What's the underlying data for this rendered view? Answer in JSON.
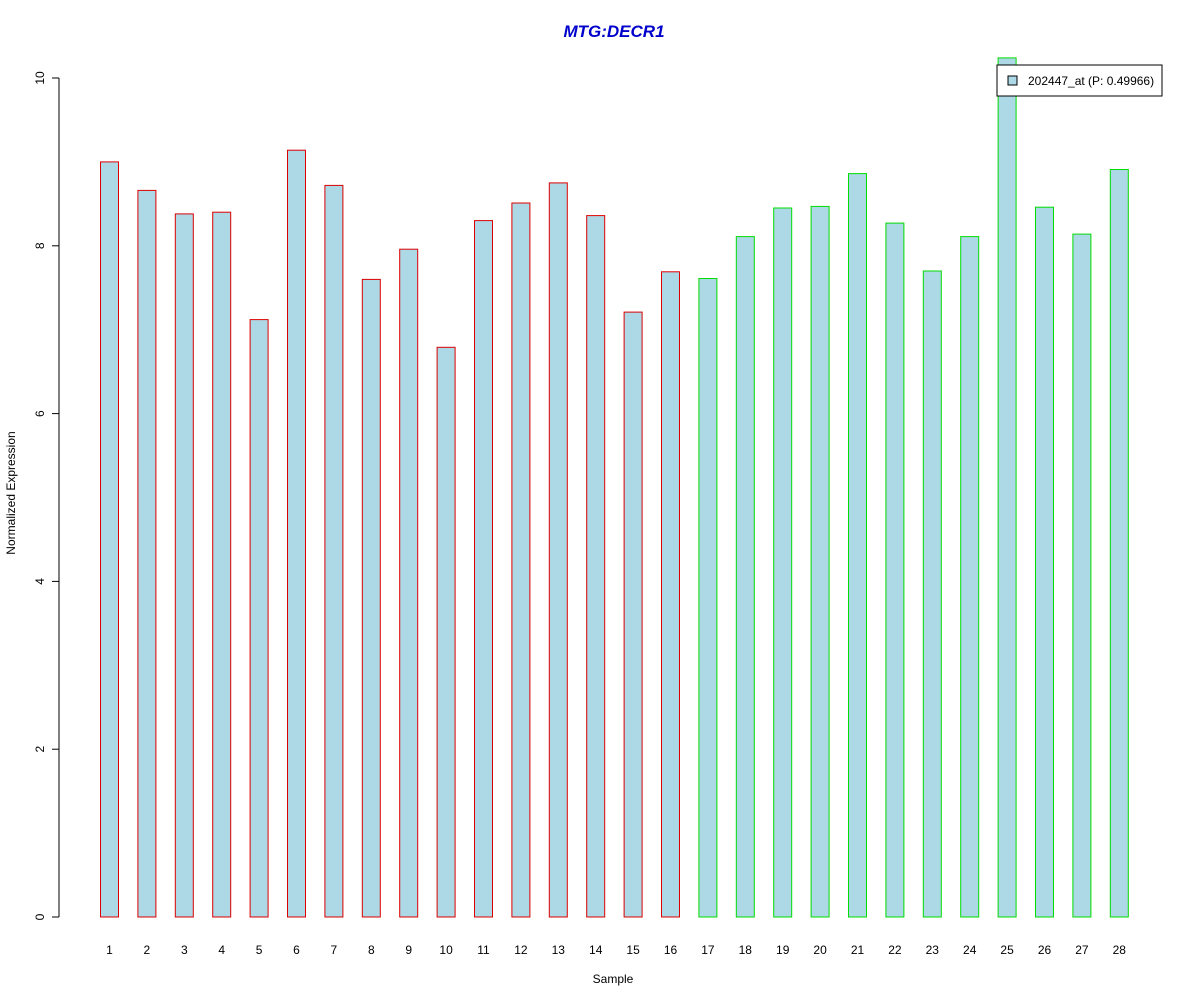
{
  "chart_data": {
    "type": "bar",
    "title": "MTG:DECR1",
    "xlabel": "Sample",
    "ylabel": "Normalized Expression",
    "ylim": [
      0,
      10
    ],
    "yticks": [
      0,
      2,
      4,
      6,
      8,
      10
    ],
    "grid": false,
    "legend_position": "top-right",
    "categories": [
      "1",
      "2",
      "3",
      "4",
      "5",
      "6",
      "7",
      "8",
      "9",
      "10",
      "11",
      "12",
      "13",
      "14",
      "15",
      "16",
      "17",
      "18",
      "19",
      "20",
      "21",
      "22",
      "23",
      "24",
      "25",
      "26",
      "27",
      "28"
    ],
    "series": [
      {
        "name": "202447_at (P: 0.49966)",
        "values": [
          9.0,
          8.66,
          8.38,
          8.4,
          7.12,
          9.14,
          8.72,
          7.6,
          7.96,
          6.79,
          8.3,
          8.51,
          8.75,
          8.36,
          7.21,
          7.69,
          7.61,
          8.11,
          8.45,
          8.47,
          8.86,
          8.27,
          7.7,
          8.11,
          10.24,
          8.46,
          8.14,
          8.91
        ]
      }
    ],
    "colors": {
      "title": "#0000cc",
      "bar_fill": "#add8e6",
      "group_1_border": "#dd0000",
      "group_2_border": "#00dd00",
      "axis": "#000000"
    },
    "groups": [
      {
        "border": "#dd0000",
        "from_index": 0,
        "to_index": 15
      },
      {
        "border": "#00dd00",
        "from_index": 16,
        "to_index": 27
      }
    ]
  }
}
